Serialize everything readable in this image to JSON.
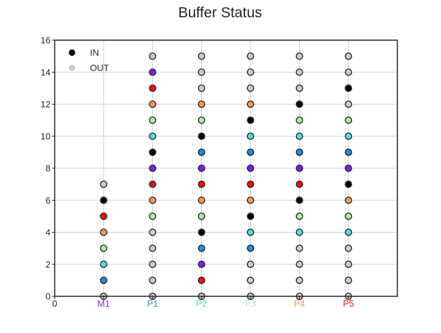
{
  "chart_data": {
    "type": "scatter",
    "title": "Buffer Status",
    "xlabel": "",
    "ylabel": "",
    "xlim": [
      0,
      7
    ],
    "ylim": [
      0,
      16
    ],
    "grid": true,
    "legend_position": "top-left",
    "x_ticks": [
      {
        "x": 0,
        "label": "0",
        "color": "#222222"
      },
      {
        "x": 1,
        "label": "M1",
        "color": "#7f22ee"
      },
      {
        "x": 2,
        "label": "P1",
        "color": "#2c8ad8"
      },
      {
        "x": 3,
        "label": "P2",
        "color": "#55e0d0"
      },
      {
        "x": 4,
        "label": "P3",
        "color": "#b2ecb0"
      },
      {
        "x": 5,
        "label": "P4",
        "color": "#f29a60"
      },
      {
        "x": 6,
        "label": "P5",
        "color": "#ee1111"
      }
    ],
    "y_ticks": [
      0,
      2,
      4,
      6,
      8,
      10,
      12,
      14,
      16
    ],
    "legend": [
      {
        "label": "IN",
        "color": "#000000"
      },
      {
        "label": "OUT",
        "color": "#cccccc"
      }
    ],
    "colors": {
      "M1": "#7f22ee",
      "P1": "#2c8ad8",
      "P2": "#55e0d0",
      "P3": "#b2ecb0",
      "P4": "#f29a60",
      "P5": "#ee1111",
      "IN": "#000000",
      "OUT": "#cccccc"
    },
    "columns": [
      {
        "x": 1,
        "slots": [
          "OUT",
          "P1",
          "P2",
          "P3",
          "P4",
          "P5",
          "IN",
          "OUT"
        ]
      },
      {
        "x": 2,
        "slots": [
          "OUT",
          "OUT",
          "OUT",
          "OUT",
          "OUT",
          "P3",
          "P4",
          "P5",
          "M1",
          "IN",
          "P2",
          "P3",
          "P4",
          "P5",
          "M1",
          "OUT"
        ]
      },
      {
        "x": 3,
        "slots": [
          "OUT",
          "P5",
          "M1",
          "P1",
          "IN",
          "P3",
          "P4",
          "P5",
          "M1",
          "P1",
          "IN",
          "P3",
          "P4",
          "OUT",
          "OUT",
          "OUT"
        ]
      },
      {
        "x": 4,
        "slots": [
          "OUT",
          "OUT",
          "OUT",
          "P1",
          "P2",
          "IN",
          "P4",
          "P5",
          "M1",
          "P1",
          "P2",
          "IN",
          "P4",
          "OUT",
          "OUT",
          "OUT"
        ]
      },
      {
        "x": 5,
        "slots": [
          "OUT",
          "OUT",
          "OUT",
          "OUT",
          "P2",
          "P3",
          "IN",
          "P5",
          "M1",
          "P1",
          "P2",
          "P3",
          "IN",
          "OUT",
          "OUT",
          "OUT"
        ]
      },
      {
        "x": 6,
        "slots": [
          "OUT",
          "OUT",
          "OUT",
          "OUT",
          "P2",
          "P3",
          "P4",
          "IN",
          "M1",
          "P1",
          "P2",
          "P3",
          "OUT",
          "IN",
          "OUT",
          "OUT"
        ]
      }
    ]
  }
}
